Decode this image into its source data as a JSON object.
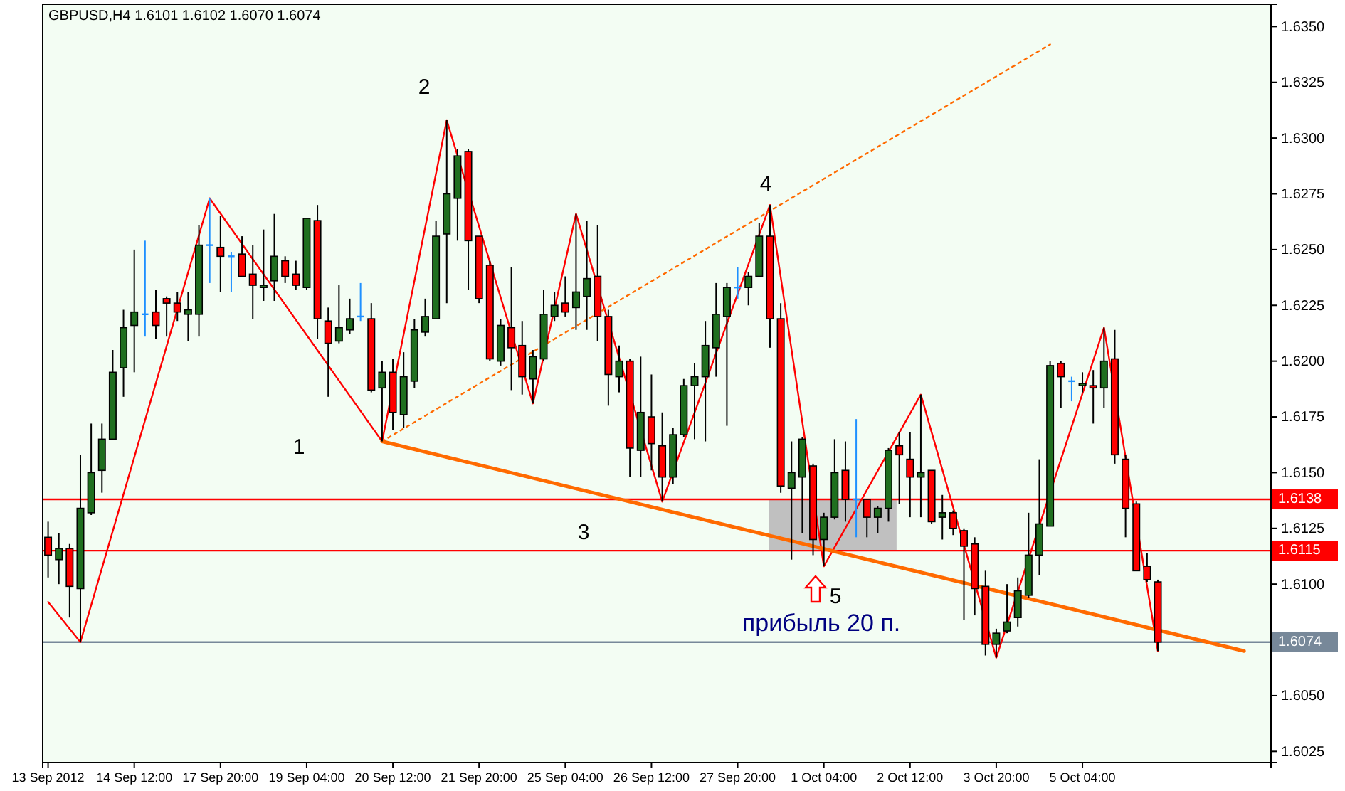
{
  "chart_data": {
    "type": "candlestick",
    "title": "GBPUSD,H4  1.6101 1.6102 1.6070 1.6074",
    "categories": [
      "13 Sep 2012",
      null,
      null,
      null,
      null,
      null,
      null,
      null,
      "14 Sep 12:00",
      null,
      null,
      null,
      null,
      null,
      null,
      null,
      "17 Sep 20:00",
      null,
      null,
      null,
      null,
      null,
      null,
      null,
      "19 Sep 04:00",
      null,
      null,
      null,
      null,
      null,
      null,
      null,
      "20 Sep 12:00",
      null,
      null,
      null,
      null,
      null,
      null,
      null,
      "21 Sep 20:00",
      null,
      null,
      null,
      null,
      null,
      null,
      null,
      "25 Sep 04:00",
      null,
      null,
      null,
      null,
      null,
      null,
      null,
      "26 Sep 12:00",
      null,
      null,
      null,
      null,
      null,
      null,
      null,
      "27 Sep 20:00",
      null,
      null,
      null,
      null,
      null,
      null,
      null,
      "1 Oct 04:00",
      null,
      null,
      null,
      null,
      null,
      null,
      null,
      "2 Oct 12:00",
      null,
      null,
      null,
      null,
      null,
      null,
      null,
      "3 Oct 20:00",
      null,
      null,
      null,
      null,
      null,
      null,
      null,
      "5 Oct 04:00",
      null,
      null,
      null,
      null,
      null,
      null,
      null,
      null,
      null,
      null,
      null,
      null,
      null,
      null,
      null,
      null,
      null
    ],
    "ohlc": [
      [
        1.6121,
        1.6128,
        1.6103,
        1.6113
      ],
      [
        1.6111,
        1.6123,
        1.61,
        1.6116
      ],
      [
        1.6116,
        1.6118,
        1.6085,
        1.6099
      ],
      [
        1.6098,
        1.6158,
        1.6074,
        1.6134
      ],
      [
        1.6132,
        1.6172,
        1.6131,
        1.615
      ],
      [
        1.6151,
        1.6172,
        1.6141,
        1.6165
      ],
      [
        1.6165,
        1.6205,
        1.6165,
        1.6195
      ],
      [
        1.6197,
        1.6223,
        1.6184,
        1.6215
      ],
      [
        1.6216,
        1.625,
        1.6195,
        1.6222
      ],
      [
        1.6221,
        1.6254,
        1.6211,
        1.6221
      ],
      [
        1.6222,
        1.6232,
        1.621,
        1.6216
      ],
      [
        1.6228,
        1.6229,
        1.6211,
        1.6226
      ],
      [
        1.6226,
        1.6231,
        1.6218,
        1.6222
      ],
      [
        1.6221,
        1.6231,
        1.6209,
        1.6223
      ],
      [
        1.6221,
        1.6261,
        1.6211,
        1.6252
      ],
      [
        1.6252,
        1.6273,
        1.6235,
        1.6252
      ],
      [
        1.6251,
        1.6265,
        1.6231,
        1.6247
      ],
      [
        1.6247,
        1.6249,
        1.6231,
        1.6247
      ],
      [
        1.6248,
        1.6256,
        1.6238,
        1.6238
      ],
      [
        1.6239,
        1.6252,
        1.6219,
        1.6234
      ],
      [
        1.6233,
        1.6259,
        1.6227,
        1.6234
      ],
      [
        1.6236,
        1.6266,
        1.6227,
        1.6247
      ],
      [
        1.6245,
        1.6247,
        1.6235,
        1.6238
      ],
      [
        1.6239,
        1.6245,
        1.6232,
        1.6234
      ],
      [
        1.6233,
        1.6264,
        1.6232,
        1.6264
      ],
      [
        1.6263,
        1.627,
        1.621,
        1.6219
      ],
      [
        1.6218,
        1.6224,
        1.6184,
        1.6208
      ],
      [
        1.6209,
        1.6234,
        1.6208,
        1.6215
      ],
      [
        1.6214,
        1.6228,
        1.6212,
        1.6219
      ],
      [
        1.622,
        1.6235,
        1.6218,
        1.622
      ],
      [
        1.6219,
        1.6226,
        1.6186,
        1.6187
      ],
      [
        1.6188,
        1.62,
        1.6164,
        1.6195
      ],
      [
        1.6195,
        1.6201,
        1.6169,
        1.6177
      ],
      [
        1.6176,
        1.6204,
        1.617,
        1.6193
      ],
      [
        1.6191,
        1.6219,
        1.6188,
        1.6214
      ],
      [
        1.6213,
        1.6228,
        1.6211,
        1.622
      ],
      [
        1.6219,
        1.6263,
        1.6219,
        1.6256
      ],
      [
        1.6257,
        1.6308,
        1.6226,
        1.6275
      ],
      [
        1.6273,
        1.6295,
        1.6254,
        1.6292
      ],
      [
        1.6294,
        1.6295,
        1.6232,
        1.6254
      ],
      [
        1.6256,
        1.6256,
        1.6226,
        1.6228
      ],
      [
        1.6243,
        1.6245,
        1.62,
        1.6201
      ],
      [
        1.62,
        1.6219,
        1.6198,
        1.6216
      ],
      [
        1.6215,
        1.6242,
        1.6187,
        1.6206
      ],
      [
        1.6207,
        1.6218,
        1.6185,
        1.6193
      ],
      [
        1.6192,
        1.6205,
        1.6181,
        1.6202
      ],
      [
        1.6201,
        1.6232,
        1.62,
        1.6221
      ],
      [
        1.622,
        1.6231,
        1.6218,
        1.6225
      ],
      [
        1.6226,
        1.6238,
        1.622,
        1.6222
      ],
      [
        1.6224,
        1.6266,
        1.6214,
        1.6231
      ],
      [
        1.6229,
        1.6263,
        1.6214,
        1.6237
      ],
      [
        1.6238,
        1.6261,
        1.6209,
        1.622
      ],
      [
        1.622,
        1.6223,
        1.618,
        1.6194
      ],
      [
        1.6193,
        1.6207,
        1.6186,
        1.62
      ],
      [
        1.62,
        1.6201,
        1.6148,
        1.6161
      ],
      [
        1.616,
        1.6202,
        1.6148,
        1.6177
      ],
      [
        1.6175,
        1.6194,
        1.6151,
        1.6163
      ],
      [
        1.6162,
        1.6177,
        1.6137,
        1.6148
      ],
      [
        1.6148,
        1.617,
        1.6145,
        1.6167
      ],
      [
        1.6167,
        1.6192,
        1.6166,
        1.6189
      ],
      [
        1.6189,
        1.6199,
        1.6165,
        1.6193
      ],
      [
        1.6193,
        1.6218,
        1.6164,
        1.6207
      ],
      [
        1.6206,
        1.6235,
        1.6193,
        1.6221
      ],
      [
        1.622,
        1.6235,
        1.6171,
        1.6233
      ],
      [
        1.6233,
        1.6242,
        1.6228,
        1.6233
      ],
      [
        1.6233,
        1.624,
        1.6225,
        1.6238
      ],
      [
        1.6238,
        1.6262,
        1.6238,
        1.6256
      ],
      [
        1.6256,
        1.627,
        1.6206,
        1.6219
      ],
      [
        1.6219,
        1.6226,
        1.6141,
        1.6144
      ],
      [
        1.6143,
        1.6164,
        1.6111,
        1.615
      ],
      [
        1.6148,
        1.6166,
        1.6123,
        1.6165
      ],
      [
        1.6153,
        1.6154,
        1.6113,
        1.612
      ],
      [
        1.612,
        1.6132,
        1.6108,
        1.613
      ],
      [
        1.613,
        1.6165,
        1.6129,
        1.615
      ],
      [
        1.6151,
        1.6164,
        1.6128,
        1.6138
      ],
      [
        1.6138,
        1.6174,
        1.6121,
        1.6138
      ],
      [
        1.6138,
        1.6138,
        1.6121,
        1.613
      ],
      [
        1.613,
        1.6135,
        1.6123,
        1.6134
      ],
      [
        1.6134,
        1.6161,
        1.6128,
        1.616
      ],
      [
        1.6162,
        1.6168,
        1.6136,
        1.6158
      ],
      [
        1.6156,
        1.6168,
        1.613,
        1.6148
      ],
      [
        1.6148,
        1.6185,
        1.613,
        1.615
      ],
      [
        1.6151,
        1.6151,
        1.6127,
        1.6128
      ],
      [
        1.613,
        1.614,
        1.612,
        1.6132
      ],
      [
        1.6132,
        1.6133,
        1.6122,
        1.6125
      ],
      [
        1.6124,
        1.6125,
        1.6084,
        1.6117
      ],
      [
        1.6118,
        1.6121,
        1.6086,
        1.6098
      ],
      [
        1.6099,
        1.6106,
        1.6068,
        1.6073
      ],
      [
        1.6073,
        1.608,
        1.6067,
        1.6078
      ],
      [
        1.6079,
        1.61,
        1.6078,
        1.6083
      ],
      [
        1.6085,
        1.6103,
        1.6081,
        1.6097
      ],
      [
        1.6095,
        1.6132,
        1.6094,
        1.6113
      ],
      [
        1.6113,
        1.6156,
        1.6104,
        1.6127
      ],
      [
        1.6126,
        1.62,
        1.6126,
        1.6198
      ],
      [
        1.6199,
        1.62,
        1.6179,
        1.6193
      ],
      [
        1.6191,
        1.6193,
        1.6182,
        1.6191
      ],
      [
        1.6189,
        1.6195,
        1.6186,
        1.619
      ],
      [
        1.6189,
        1.6196,
        1.6172,
        1.6188
      ],
      [
        1.6188,
        1.6215,
        1.6179,
        1.62
      ],
      [
        1.6201,
        1.6214,
        1.6154,
        1.6158
      ],
      [
        1.6156,
        1.6158,
        1.6121,
        1.6134
      ],
      [
        1.6136,
        1.6137,
        1.6106,
        1.6106
      ],
      [
        1.6108,
        1.6114,
        1.6101,
        1.6102
      ],
      [
        1.6101,
        1.6102,
        1.607,
        1.6074
      ],
      null,
      null,
      null,
      null,
      null,
      null,
      null,
      null,
      null,
      null
    ],
    "series": [
      {
        "type": "line",
        "color": "#ff0000",
        "line_style": "solid",
        "values": [
          1.6092,
          null,
          null,
          1.6074,
          null,
          null,
          null,
          null,
          null,
          null,
          null,
          null,
          null,
          null,
          null,
          1.6273,
          null,
          null,
          null,
          null,
          null,
          null,
          null,
          null,
          null,
          null,
          null,
          null,
          null,
          null,
          null,
          1.6164,
          null,
          null,
          null,
          null,
          null,
          1.6308,
          null,
          null,
          null,
          null,
          null,
          null,
          null,
          1.6181,
          null,
          null,
          null,
          1.6266,
          null,
          null,
          null,
          null,
          null,
          null,
          null,
          1.6137,
          null,
          null,
          null,
          null,
          null,
          null,
          null,
          null,
          null,
          1.627,
          null,
          null,
          null,
          null,
          1.6108,
          null,
          null,
          null,
          null,
          null,
          null,
          null,
          null,
          1.6185,
          null,
          null,
          null,
          null,
          null,
          null,
          1.6067,
          null,
          null,
          null,
          null,
          null,
          null,
          null,
          null,
          null,
          1.6215,
          null,
          null,
          null,
          null,
          1.607,
          null,
          null,
          null,
          null,
          null,
          null,
          null,
          null,
          null,
          null
        ]
      },
      {
        "type": "line",
        "color": "#ff6a00",
        "line_style": "solid",
        "values": [
          null,
          null,
          null,
          null,
          null,
          null,
          null,
          null,
          null,
          null,
          null,
          null,
          null,
          null,
          null,
          null,
          null,
          null,
          null,
          null,
          null,
          null,
          null,
          null,
          null,
          null,
          null,
          null,
          null,
          null,
          null,
          1.6164,
          null,
          null,
          null,
          null,
          null,
          null,
          null,
          null,
          null,
          null,
          null,
          null,
          null,
          null,
          null,
          null,
          null,
          null,
          null,
          null,
          null,
          null,
          null,
          null,
          null,
          null,
          null,
          null,
          null,
          null,
          null,
          null,
          null,
          null,
          null,
          null,
          null,
          null,
          null,
          null,
          null,
          null,
          null,
          null,
          null,
          null,
          null,
          null,
          null,
          null,
          null,
          null,
          null,
          null,
          null,
          null,
          null,
          null,
          null,
          null,
          null,
          null,
          null,
          null,
          null,
          null,
          null,
          null,
          null,
          null,
          null,
          null,
          null,
          null,
          null,
          null,
          null,
          null,
          null,
          1.607,
          null,
          null
        ]
      },
      {
        "type": "line",
        "color": "#ff6a00",
        "line_style": "dotted",
        "values": [
          null,
          null,
          null,
          null,
          null,
          null,
          null,
          null,
          null,
          null,
          null,
          null,
          null,
          null,
          null,
          null,
          null,
          null,
          null,
          null,
          null,
          null,
          null,
          null,
          null,
          null,
          null,
          null,
          null,
          null,
          null,
          1.6164,
          null,
          null,
          null,
          null,
          null,
          null,
          null,
          null,
          null,
          null,
          null,
          null,
          null,
          null,
          null,
          null,
          null,
          null,
          null,
          null,
          null,
          null,
          null,
          null,
          null,
          null,
          null,
          null,
          null,
          null,
          null,
          null,
          null,
          null,
          null,
          null,
          null,
          null,
          null,
          null,
          null,
          null,
          null,
          null,
          null,
          null,
          null,
          null,
          null,
          null,
          null,
          null,
          null,
          null,
          null,
          null,
          null,
          null,
          null,
          null,
          null,
          1.6342,
          null,
          null,
          null,
          null,
          null,
          null,
          null,
          null,
          null,
          null,
          null,
          null,
          null,
          null,
          null,
          null,
          null,
          null,
          null,
          null
        ]
      }
    ],
    "ylim": [
      1.602,
      1.636
    ],
    "yticks": [
      {
        "value": 1.6025,
        "label": "1.6025"
      },
      {
        "value": 1.605,
        "label": "1.6050"
      },
      {
        "value": 1.6075,
        "label": null
      },
      {
        "value": 1.61,
        "label": "1.6100"
      },
      {
        "value": 1.6125,
        "label": "1.6125"
      },
      {
        "value": 1.615,
        "label": "1.6150"
      },
      {
        "value": 1.6175,
        "label": "1.6175"
      },
      {
        "value": 1.62,
        "label": "1.6200"
      },
      {
        "value": 1.6225,
        "label": "1.6225"
      },
      {
        "value": 1.625,
        "label": "1.6250"
      },
      {
        "value": 1.6275,
        "label": "1.6275"
      },
      {
        "value": 1.63,
        "label": "1.6300"
      },
      {
        "value": 1.6325,
        "label": "1.6325"
      },
      {
        "value": 1.635,
        "label": "1.6350"
      }
    ],
    "ref_lines": [
      {
        "axis": "y",
        "value": 1.6138,
        "label": "1.6138",
        "color": "#ff0000"
      },
      {
        "axis": "y",
        "value": 1.6115,
        "label": "1.6115",
        "color": "#ff0000"
      },
      {
        "axis": "y",
        "value": 1.6074,
        "label": "1.6074",
        "color": "#778899"
      }
    ],
    "annotations": [
      "1",
      "2",
      "3",
      "4",
      "5",
      "прибыль 20 п."
    ],
    "grid": false
  }
}
